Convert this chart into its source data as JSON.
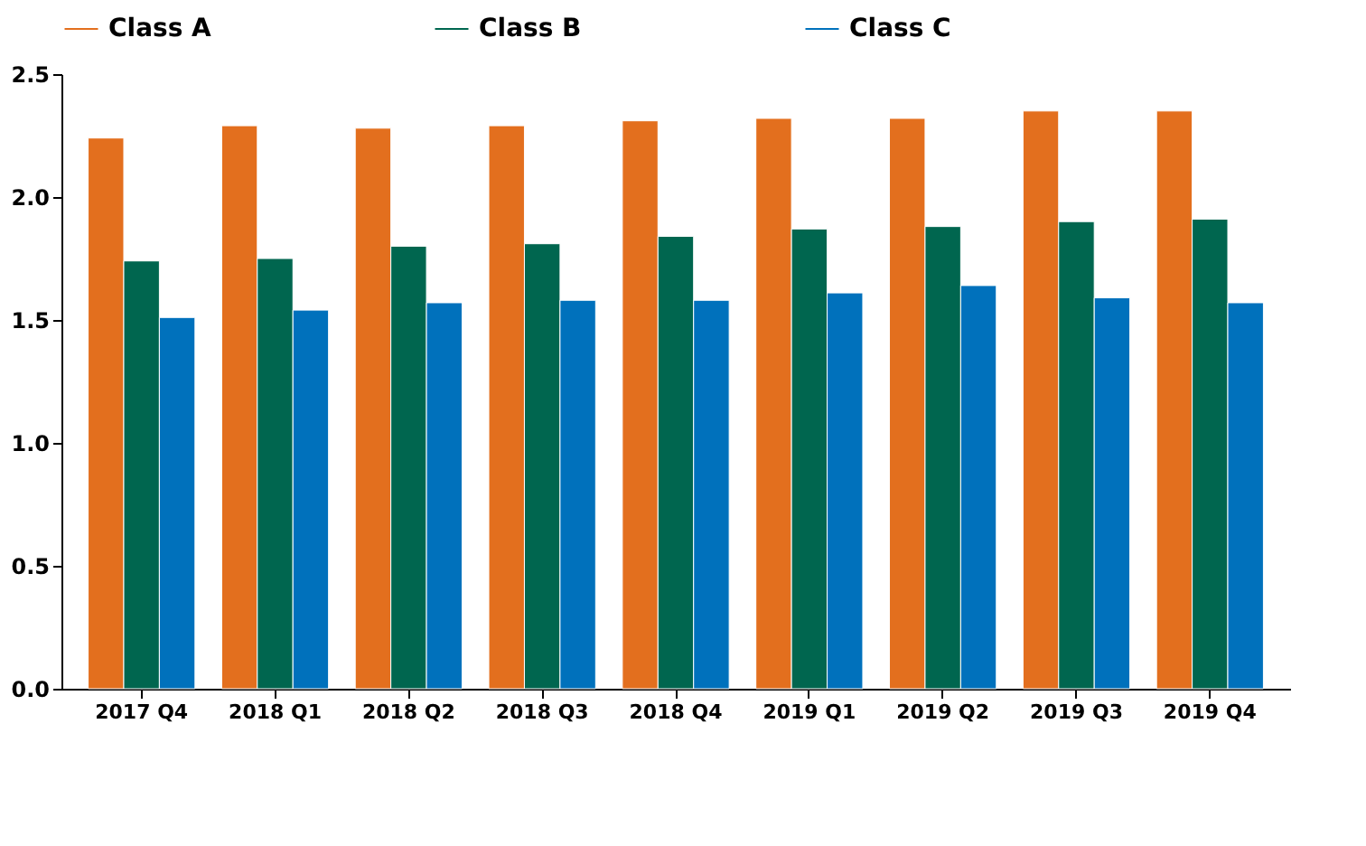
{
  "chart_data": {
    "type": "bar",
    "categories": [
      "2017 Q4",
      "2018 Q1",
      "2018 Q2",
      "2018 Q3",
      "2018 Q4",
      "2019 Q1",
      "2019 Q2",
      "2019 Q3",
      "2019 Q4"
    ],
    "series": [
      {
        "name": "Class A",
        "color": "#e36f1e",
        "values": [
          2.24,
          2.29,
          2.28,
          2.29,
          2.31,
          2.32,
          2.32,
          2.35,
          2.35
        ]
      },
      {
        "name": "Class B",
        "color": "#00664f",
        "values": [
          1.74,
          1.75,
          1.8,
          1.81,
          1.84,
          1.87,
          1.88,
          1.9,
          1.91
        ]
      },
      {
        "name": "Class C",
        "color": "#0071bc",
        "values": [
          1.51,
          1.54,
          1.57,
          1.58,
          1.58,
          1.61,
          1.64,
          1.59,
          1.57
        ]
      }
    ],
    "ylim": [
      0,
      2.5
    ],
    "yticks": [
      {
        "value": 0,
        "label": "0.0"
      },
      {
        "value": 0.5,
        "label": "0.5"
      },
      {
        "value": 1,
        "label": "1.0"
      },
      {
        "value": 1.5,
        "label": "1.5"
      },
      {
        "value": 2,
        "label": "2.0"
      },
      {
        "value": 2.5,
        "label": "2.5"
      }
    ],
    "grid": false,
    "legend": "top"
  }
}
